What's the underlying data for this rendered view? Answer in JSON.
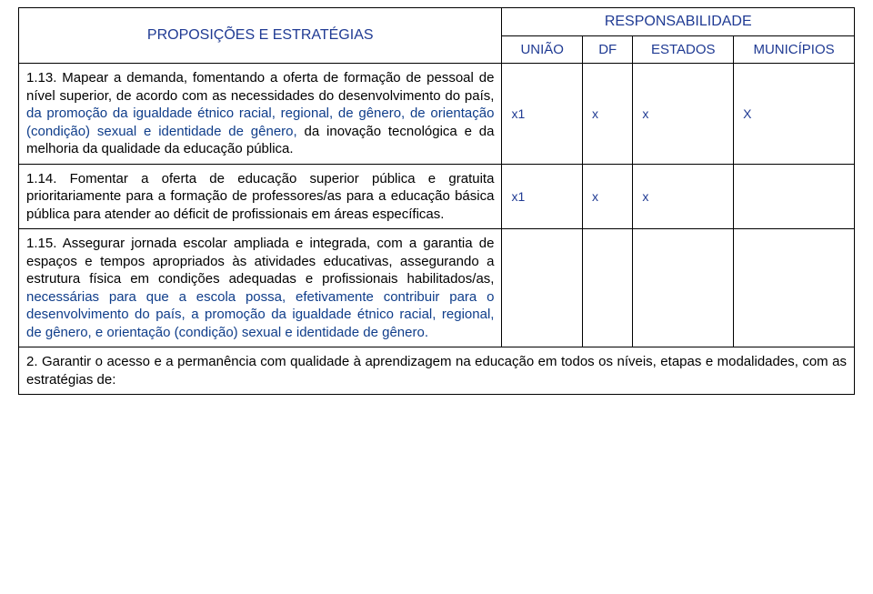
{
  "header": {
    "propositions": "PROPOSIÇÕES E ESTRATÉGIAS",
    "responsibility": "RESPONSABILIDADE",
    "uniao": "UNIÃO",
    "df": "DF",
    "estados": "ESTADOS",
    "municipios": "MUNICÍPIOS"
  },
  "rows": {
    "r13": {
      "black": "1.13. Mapear a demanda, fomentando a oferta de formação de pessoal de nível superior, de acordo com as necessidades do desenvolvimento do país, ",
      "blue": "da promoção da igualdade étnico racial, regional, de gênero, de orientação (condição) sexual e identidade de gênero, ",
      "black2": "da inovação tecnológica e da melhoria da qualidade da educação pública.",
      "uniao": "x1",
      "df": "x",
      "estados": "x",
      "municipios": "X"
    },
    "r14": {
      "text": "1.14. Fomentar a oferta de educação superior pública e gratuita prioritariamente para a formação de professores/as para a educação básica pública para atender ao déficit de profissionais em áreas específicas.",
      "uniao": "x1",
      "df": "x",
      "estados": "x",
      "municipios": ""
    },
    "r15": {
      "black": "1.15. Assegurar jornada escolar ampliada e integrada, com a garantia de espaços e tempos apropriados às atividades educativas, assegurando a estrutura física em condições adequadas e profissionais habilitados/as, ",
      "blue": "necessárias para que a escola possa, efetivamente contribuir para o desenvolvimento do país, a promoção da igualdade étnico racial, regional, de gênero, e orientação (condição) sexual e identidade de gênero."
    },
    "r2": {
      "text": "2. Garantir o acesso e a permanência com qualidade à aprendizagem na educação em todos os níveis, etapas e modalidades, com as estratégias de:"
    }
  },
  "style": {
    "blue_color": "#0f3d8a",
    "header_blue": "#1f3a93",
    "background": "#ffffff",
    "text_color": "#000000",
    "font_family": "Arial, sans-serif",
    "base_font_size": 15
  }
}
